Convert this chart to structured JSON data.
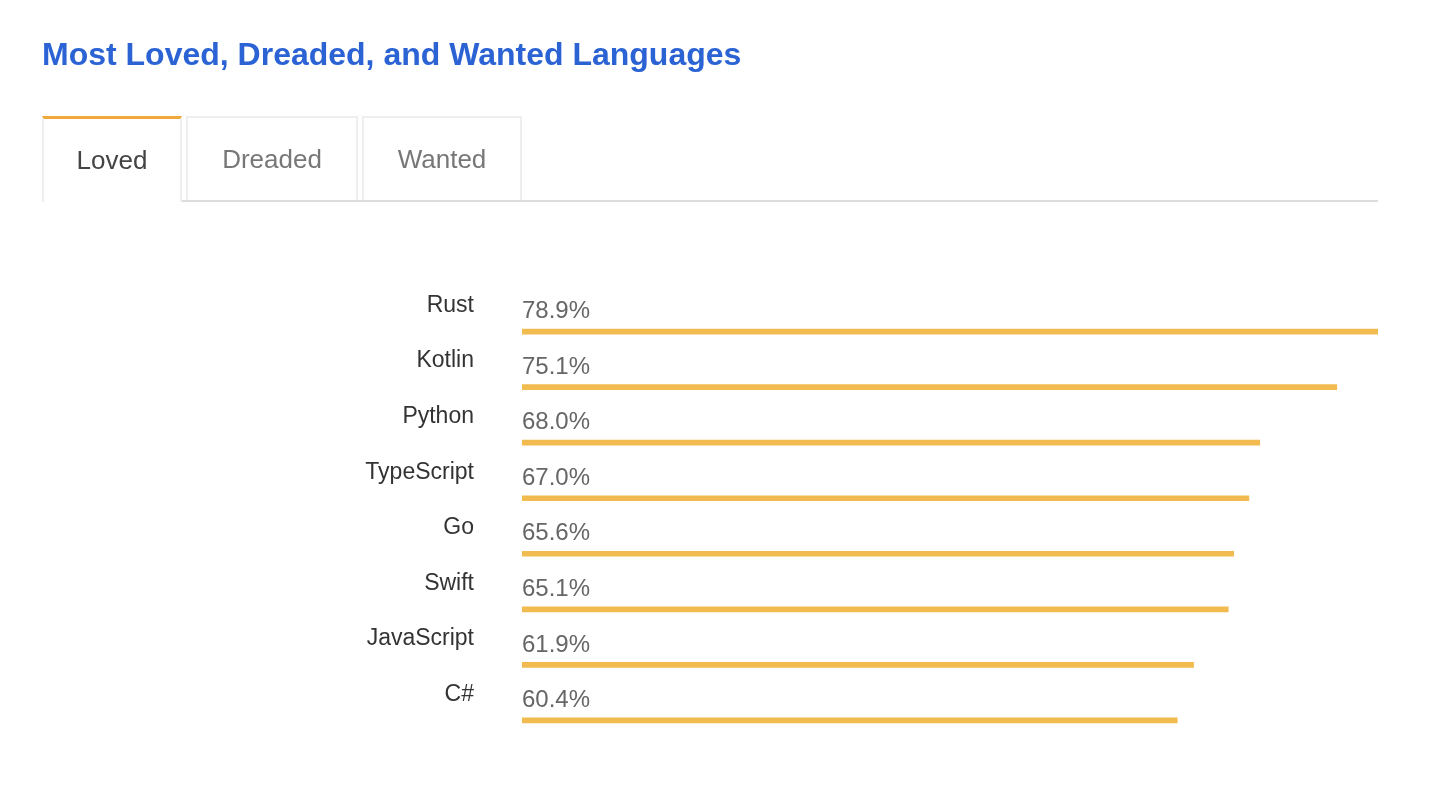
{
  "chart_data": {
    "type": "bar",
    "title": "Most Loved, Dreaded, and Wanted Languages",
    "orientation": "horizontal",
    "categories": [
      "Rust",
      "Kotlin",
      "Python",
      "TypeScript",
      "Go",
      "Swift",
      "JavaScript",
      "C#"
    ],
    "values": [
      78.9,
      75.1,
      68.0,
      67.0,
      65.6,
      65.1,
      61.9,
      60.4
    ],
    "value_labels": [
      "78.9%",
      "75.1%",
      "68.0%",
      "67.0%",
      "65.6%",
      "65.1%",
      "61.9%",
      "60.4%"
    ],
    "color": "#f2bb4f",
    "legend": false,
    "tick_labels": "y",
    "annotations": [
      "Loved",
      "Dreaded",
      "Wanted"
    ]
  }
}
